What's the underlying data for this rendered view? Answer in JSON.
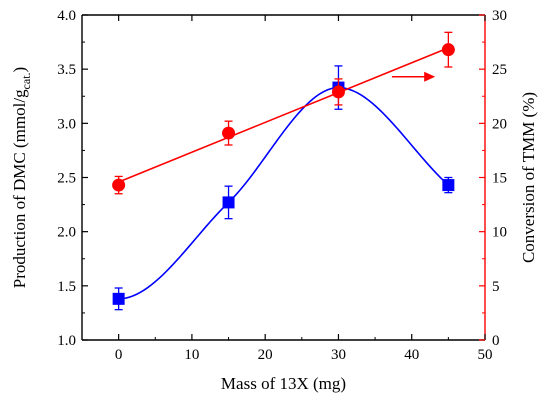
{
  "chart_data": {
    "type": "scatter",
    "xlabel": "Mass of 13X (mg)",
    "ylabel_left": "Production of DMC (mmol/g",
    "ylabel_left_sub": "cat.",
    "ylabel_left_close": ")",
    "ylabel_right": "Conversion of TMM (%)",
    "xlim": [
      -5,
      50
    ],
    "ylim_left": [
      1.0,
      4.0
    ],
    "ylim_right": [
      0,
      30
    ],
    "x_ticks": [
      0,
      10,
      20,
      30,
      40,
      50
    ],
    "y_left_ticks": [
      "1.0",
      "1.5",
      "2.0",
      "2.5",
      "3.0",
      "3.5",
      "4.0"
    ],
    "y_right_ticks": [
      "0",
      "5",
      "10",
      "15",
      "20",
      "25",
      "30"
    ],
    "grid": false,
    "colors": {
      "left_axis": "#000000",
      "right_axis": "#ff0000"
    },
    "series": [
      {
        "axis": "left",
        "marker": "square",
        "color": "#0000ff",
        "x": [
          0,
          15,
          30,
          45
        ],
        "y": [
          1.38,
          2.27,
          3.33,
          2.43
        ],
        "yerr": [
          0.1,
          0.15,
          0.2,
          0.07
        ],
        "fit": "spline"
      },
      {
        "axis": "right",
        "marker": "circle",
        "color": "#ff0000",
        "x": [
          0,
          15,
          30,
          45
        ],
        "y": [
          14.3,
          19.1,
          22.9,
          26.8
        ],
        "yerr": [
          0.8,
          1.1,
          1.2,
          1.6
        ],
        "fit": "linear"
      }
    ],
    "annotations": [
      {
        "type": "arrow",
        "direction": "right",
        "color": "#ff0000",
        "points_to": "right-axis"
      }
    ]
  }
}
